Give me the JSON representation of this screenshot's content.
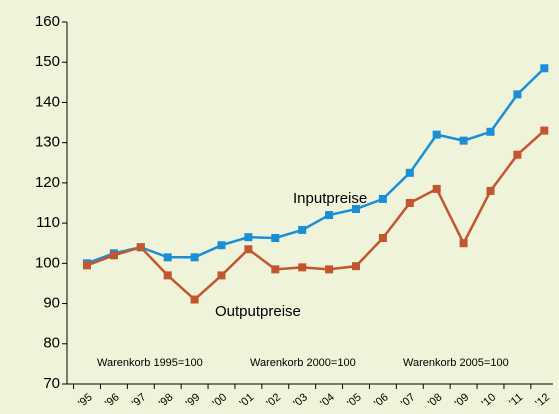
{
  "chart_data": {
    "type": "line",
    "categories": [
      "'95",
      "'96",
      "'97",
      "'98",
      "'99",
      "'00",
      "'01",
      "'02",
      "'03",
      "'04",
      "'05",
      "'06",
      "'07",
      "'08",
      "'09",
      "'10",
      "'11",
      "'12"
    ],
    "series": [
      {
        "name": "Inputpreise",
        "color": "#1a8fd8",
        "values": [
          100,
          102.5,
          104,
          101.5,
          101.5,
          104.5,
          106.5,
          106.3,
          108.3,
          112,
          113.5,
          116,
          122.5,
          132,
          130.5,
          132.7,
          142,
          148.5
        ]
      },
      {
        "name": "Outputpreise",
        "color": "#c2562e",
        "values": [
          99.5,
          102,
          104,
          97,
          91,
          97,
          103.5,
          98.5,
          99,
          98.5,
          99.3,
          106.3,
          115,
          118.5,
          105,
          118,
          127,
          133
        ]
      }
    ],
    "annotations": [
      "Warenkorb 1995=100",
      "Warenkorb 2000=100",
      "Warenkorb 2005=100"
    ],
    "ylim": [
      70,
      160
    ],
    "yticks": [
      70,
      80,
      90,
      100,
      110,
      120,
      130,
      140,
      150,
      160
    ],
    "grid": false
  }
}
